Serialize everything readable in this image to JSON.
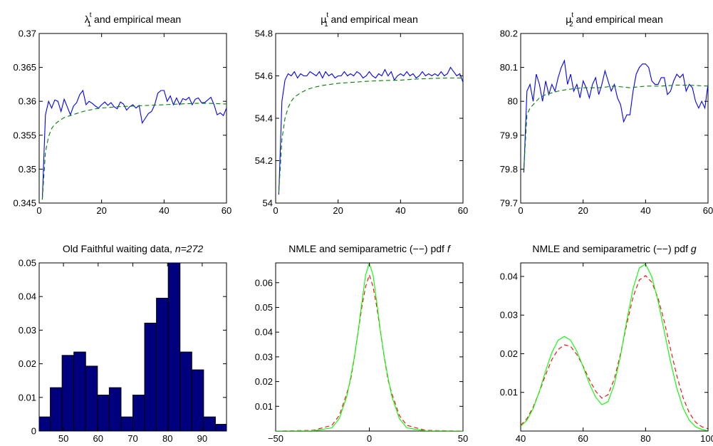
{
  "colors": {
    "series_blue": "#0000ff",
    "series_green": "#007f00",
    "bar_fill": "#00007f",
    "red": "#ff0000",
    "green": "#00ff00"
  },
  "chart_data": [
    {
      "id": "p1",
      "type": "line",
      "title": {
        "sym": "λ",
        "sub": "1",
        "sup": "t",
        "rest": " and empirical mean"
      },
      "xlim": [
        0,
        60
      ],
      "ylim": [
        0.345,
        0.37
      ],
      "xticks": [
        0,
        20,
        40,
        60
      ],
      "xtick_labels": [
        "0",
        "20",
        "40",
        "60"
      ],
      "yticks": [
        0.345,
        0.35,
        0.355,
        0.36,
        0.365,
        0.37
      ],
      "ytick_labels": [
        "0.345",
        "0.35",
        "0.355",
        "0.36",
        "0.365",
        "0.37"
      ],
      "series": [
        {
          "style": "solid",
          "color": "#0000ff",
          "x": [
            1,
            2,
            3,
            4,
            5,
            6,
            7,
            8,
            9,
            10,
            11,
            12,
            13,
            14,
            15,
            16,
            17,
            18,
            19,
            20,
            21,
            22,
            23,
            24,
            25,
            26,
            27,
            28,
            29,
            30,
            31,
            32,
            33,
            34,
            35,
            36,
            37,
            38,
            39,
            40,
            41,
            42,
            43,
            44,
            45,
            46,
            47,
            48,
            49,
            50,
            51,
            52,
            53,
            54,
            55,
            56,
            57,
            58,
            59,
            60
          ],
          "y": [
            0.3455,
            0.358,
            0.36,
            0.359,
            0.3602,
            0.36,
            0.3585,
            0.3603,
            0.3592,
            0.358,
            0.3593,
            0.3598,
            0.361,
            0.3616,
            0.3595,
            0.36,
            0.3597,
            0.3593,
            0.359,
            0.3595,
            0.3599,
            0.3594,
            0.3598,
            0.3592,
            0.3589,
            0.3599,
            0.3596,
            0.3587,
            0.3592,
            0.3595,
            0.359,
            0.3594,
            0.3568,
            0.3575,
            0.3582,
            0.3585,
            0.3595,
            0.3612,
            0.3616,
            0.3616,
            0.36,
            0.3608,
            0.3595,
            0.3605,
            0.3595,
            0.3604,
            0.3602,
            0.3606,
            0.3595,
            0.3603,
            0.3605,
            0.3598,
            0.3598,
            0.3602,
            0.3606,
            0.3595,
            0.358,
            0.3583,
            0.3579,
            0.359
          ]
        },
        {
          "style": "dashed",
          "color": "#007f00",
          "x": [
            1,
            2,
            3,
            4,
            5,
            6,
            7,
            8,
            10,
            12,
            14,
            16,
            18,
            20,
            25,
            30,
            35,
            40,
            45,
            50,
            55,
            60
          ],
          "y": [
            0.3455,
            0.3525,
            0.3548,
            0.356,
            0.3566,
            0.357,
            0.3573,
            0.3576,
            0.3579,
            0.3582,
            0.3585,
            0.3587,
            0.3589,
            0.359,
            0.3592,
            0.3593,
            0.3594,
            0.3595,
            0.3596,
            0.3597,
            0.3597,
            0.3596
          ]
        }
      ]
    },
    {
      "id": "p2",
      "type": "line",
      "title": {
        "sym": "μ",
        "sub": "1",
        "sup": "t",
        "rest": " and empirical mean"
      },
      "xlim": [
        0,
        60
      ],
      "ylim": [
        54,
        54.8
      ],
      "xticks": [
        0,
        20,
        40,
        60
      ],
      "xtick_labels": [
        "0",
        "20",
        "40",
        "60"
      ],
      "yticks": [
        54,
        54.2,
        54.4,
        54.6,
        54.8
      ],
      "ytick_labels": [
        "54",
        "54.2",
        "54.4",
        "54.6",
        "54.8"
      ],
      "series": [
        {
          "style": "solid",
          "color": "#0000ff",
          "x": [
            1,
            2,
            3,
            4,
            5,
            6,
            7,
            8,
            9,
            10,
            11,
            12,
            13,
            14,
            15,
            16,
            17,
            18,
            19,
            20,
            21,
            22,
            23,
            24,
            25,
            26,
            27,
            28,
            29,
            30,
            31,
            32,
            33,
            34,
            35,
            36,
            37,
            38,
            39,
            40,
            41,
            42,
            43,
            44,
            45,
            46,
            47,
            48,
            49,
            50,
            51,
            52,
            53,
            54,
            55,
            56,
            57,
            58,
            59,
            60
          ],
          "y": [
            54.04,
            54.48,
            54.58,
            54.61,
            54.6,
            54.62,
            54.59,
            54.61,
            54.6,
            54.6,
            54.62,
            54.61,
            54.6,
            54.62,
            54.59,
            54.62,
            54.6,
            54.61,
            54.59,
            54.6,
            54.6,
            54.62,
            54.6,
            54.61,
            54.6,
            54.62,
            54.61,
            54.59,
            54.6,
            54.62,
            54.6,
            54.59,
            54.61,
            54.6,
            54.63,
            54.6,
            54.62,
            54.58,
            54.6,
            54.61,
            54.6,
            54.62,
            54.6,
            54.61,
            54.59,
            54.6,
            54.62,
            54.6,
            54.61,
            54.6,
            54.61,
            54.6,
            54.62,
            54.6,
            54.61,
            54.64,
            54.62,
            54.6,
            54.61,
            54.57
          ]
        },
        {
          "style": "dashed",
          "color": "#007f00",
          "x": [
            1,
            2,
            3,
            4,
            5,
            6,
            7,
            8,
            10,
            12,
            15,
            20,
            25,
            30,
            35,
            40,
            45,
            50,
            55,
            60
          ],
          "y": [
            54.05,
            54.3,
            54.4,
            54.45,
            54.48,
            54.5,
            54.51,
            54.52,
            54.535,
            54.545,
            54.555,
            54.565,
            54.57,
            54.575,
            54.578,
            54.58,
            54.585,
            54.588,
            54.59,
            54.59
          ]
        }
      ]
    },
    {
      "id": "p3",
      "type": "line",
      "title": {
        "sym": "μ",
        "sub": "2",
        "sup": "t",
        "rest": " and empirical mean"
      },
      "xlim": [
        0,
        60
      ],
      "ylim": [
        79.7,
        80.2
      ],
      "xticks": [
        0,
        20,
        40,
        60
      ],
      "xtick_labels": [
        "0",
        "20",
        "40",
        "60"
      ],
      "yticks": [
        79.7,
        79.8,
        79.9,
        80,
        80.1,
        80.2
      ],
      "ytick_labels": [
        "79.7",
        "79.8",
        "79.9",
        "80",
        "80.1",
        "80.2"
      ],
      "series": [
        {
          "style": "solid",
          "color": "#0000ff",
          "x": [
            1,
            2,
            3,
            4,
            5,
            6,
            7,
            8,
            9,
            10,
            11,
            12,
            13,
            14,
            15,
            16,
            17,
            18,
            19,
            20,
            21,
            22,
            23,
            24,
            25,
            26,
            27,
            28,
            29,
            30,
            31,
            32,
            33,
            34,
            35,
            36,
            37,
            38,
            39,
            40,
            41,
            42,
            43,
            44,
            45,
            46,
            47,
            48,
            49,
            50,
            51,
            52,
            53,
            54,
            55,
            56,
            57,
            58,
            59,
            60
          ],
          "y": [
            79.79,
            80.03,
            80.05,
            80.0,
            80.08,
            80.05,
            80.0,
            80.06,
            80.02,
            80.05,
            80.03,
            80.07,
            80.1,
            80.12,
            80.05,
            80.08,
            80.03,
            80.05,
            80.01,
            80.06,
            80.04,
            80.01,
            80.05,
            80.07,
            80.02,
            80.05,
            80.09,
            80.06,
            80.03,
            80.05,
            80.01,
            79.99,
            79.94,
            79.96,
            79.96,
            80.03,
            80.08,
            80.1,
            80.11,
            80.11,
            80.1,
            80.06,
            80.05,
            80.05,
            80.07,
            80.07,
            80.02,
            80.03,
            80.06,
            80.08,
            80.07,
            80.08,
            80.03,
            80.05,
            80.04,
            80.0,
            79.98,
            80.0,
            79.98,
            80.05
          ]
        },
        {
          "style": "dashed",
          "color": "#007f00",
          "x": [
            1,
            2,
            3,
            4,
            5,
            6,
            8,
            10,
            12,
            15,
            20,
            25,
            30,
            35,
            40,
            45,
            50,
            55,
            60
          ],
          "y": [
            79.8,
            79.96,
            79.98,
            79.99,
            80.0,
            80.01,
            80.02,
            80.025,
            80.03,
            80.035,
            80.04,
            80.04,
            80.045,
            80.04,
            80.045,
            80.045,
            80.048,
            80.047,
            80.045
          ]
        }
      ]
    },
    {
      "id": "p4",
      "type": "bar",
      "title": {
        "plain": "Old Faithful waiting data, ",
        "italic": "n=272"
      },
      "xlim": [
        43,
        97
      ],
      "ylim": [
        0,
        0.05
      ],
      "xticks": [
        50,
        60,
        70,
        80,
        90
      ],
      "xtick_labels": [
        "50",
        "60",
        "70",
        "80",
        "90"
      ],
      "yticks": [
        0,
        0.01,
        0.02,
        0.03,
        0.04,
        0.05
      ],
      "ytick_labels": [
        "0",
        "0.01",
        "0.02",
        "0.03",
        "0.04",
        "0.05"
      ],
      "bin_width": 3.4,
      "categories": [
        44.5,
        47.9,
        51.3,
        54.7,
        58.1,
        61.5,
        64.9,
        68.3,
        71.7,
        75.1,
        78.5,
        81.9,
        85.3,
        88.7,
        92.1,
        95.5
      ],
      "values": [
        0.0042,
        0.0129,
        0.0225,
        0.0235,
        0.0193,
        0.0107,
        0.0129,
        0.0042,
        0.0107,
        0.0321,
        0.0395,
        0.0505,
        0.0235,
        0.0182,
        0.0042,
        0.002
      ]
    },
    {
      "id": "p5",
      "type": "line",
      "title": {
        "plain": "NMLE and semiparametric (−−) pdf ",
        "italic": "f"
      },
      "xlim": [
        -50,
        50
      ],
      "ylim": [
        0,
        0.068
      ],
      "xticks": [
        -50,
        0,
        50
      ],
      "xtick_labels": [
        "−50",
        "0",
        "50"
      ],
      "yticks": [
        0.01,
        0.02,
        0.03,
        0.04,
        0.05,
        0.06
      ],
      "ytick_labels": [
        "0.01",
        "0.02",
        "0.03",
        "0.04",
        "0.05",
        "0.06"
      ],
      "series": [
        {
          "style": "dashed",
          "color": "#ff0000",
          "x": [
            -50,
            -30,
            -20,
            -16,
            -12,
            -10,
            -8,
            -6,
            -4,
            -2,
            0,
            2,
            4,
            6,
            8,
            10,
            12,
            16,
            20,
            30,
            50
          ],
          "y": [
            0,
            0.0003,
            0.0023,
            0.0063,
            0.0152,
            0.0206,
            0.0297,
            0.0398,
            0.0502,
            0.0583,
            0.0632,
            0.0583,
            0.0502,
            0.0398,
            0.0297,
            0.0206,
            0.0152,
            0.0063,
            0.0023,
            0.0003,
            0
          ]
        },
        {
          "style": "solid",
          "color": "#00ff00",
          "x": [
            -50,
            -30,
            -20,
            -16,
            -12,
            -10,
            -8,
            -6,
            -4,
            -2,
            0,
            2,
            4,
            6,
            8,
            10,
            12,
            16,
            20,
            30,
            50
          ],
          "y": [
            0,
            0.0001,
            0.0013,
            0.0051,
            0.014,
            0.0215,
            0.03,
            0.04,
            0.052,
            0.063,
            0.068,
            0.063,
            0.052,
            0.04,
            0.03,
            0.0215,
            0.014,
            0.0051,
            0.0013,
            0.0001,
            0
          ]
        }
      ]
    },
    {
      "id": "p6",
      "type": "line",
      "title": {
        "plain": "NMLE and semiparametric (−−) pdf ",
        "italic": "g"
      },
      "xlim": [
        40,
        100
      ],
      "ylim": [
        0,
        0.0435
      ],
      "xticks": [
        40,
        60,
        80,
        100
      ],
      "xtick_labels": [
        "40",
        "60",
        "80",
        "100"
      ],
      "yticks": [
        0.01,
        0.02,
        0.03,
        0.04
      ],
      "ytick_labels": [
        "0.01",
        "0.02",
        "0.03",
        "0.04"
      ],
      "series": [
        {
          "style": "dashed",
          "color": "#ff0000",
          "x": [
            40,
            42,
            44,
            46,
            48,
            50,
            52,
            54,
            56,
            58,
            60,
            62,
            64,
            66,
            68,
            70,
            72,
            74,
            76,
            78,
            80,
            82,
            84,
            86,
            88,
            90,
            92,
            94,
            96,
            98,
            100
          ],
          "y": [
            0.0015,
            0.0032,
            0.0062,
            0.0102,
            0.0146,
            0.0185,
            0.0211,
            0.0223,
            0.0219,
            0.0198,
            0.0168,
            0.0133,
            0.0103,
            0.0085,
            0.0094,
            0.0135,
            0.0201,
            0.0277,
            0.0347,
            0.0391,
            0.0402,
            0.0385,
            0.0344,
            0.0283,
            0.0212,
            0.0143,
            0.0087,
            0.0047,
            0.0023,
            0.0011,
            0.0006
          ]
        },
        {
          "style": "solid",
          "color": "#00ff00",
          "x": [
            40,
            42,
            44,
            46,
            48,
            50,
            52,
            54,
            56,
            58,
            60,
            62,
            64,
            66,
            68,
            70,
            72,
            74,
            76,
            78,
            80,
            82,
            84,
            86,
            88,
            90,
            92,
            94,
            96,
            98,
            100
          ],
          "y": [
            0.0012,
            0.0028,
            0.0058,
            0.0103,
            0.0156,
            0.0203,
            0.0235,
            0.0245,
            0.0235,
            0.0206,
            0.0166,
            0.0123,
            0.0088,
            0.0068,
            0.0076,
            0.0121,
            0.0196,
            0.0286,
            0.0369,
            0.0422,
            0.0432,
            0.0399,
            0.0336,
            0.0258,
            0.0179,
            0.0111,
            0.006,
            0.0028,
            0.0011,
            0.0004,
            0.0001
          ]
        }
      ]
    }
  ]
}
